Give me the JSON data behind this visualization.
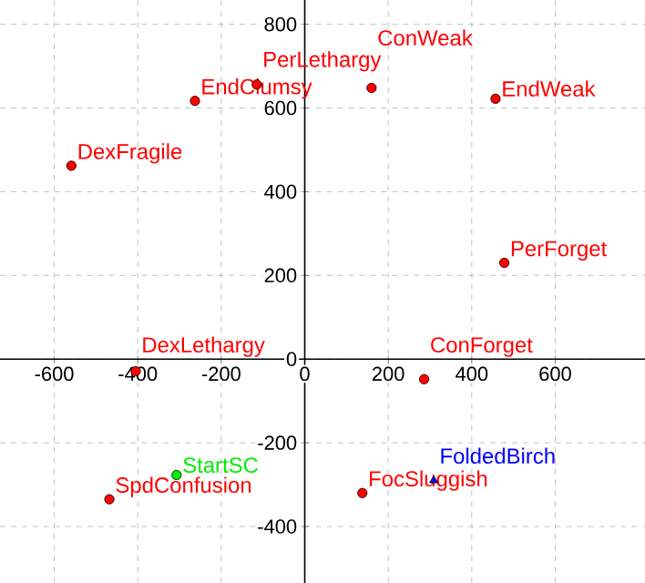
{
  "chart_data": {
    "type": "scatter",
    "xlim": [
      -730,
      815
    ],
    "ylim": [
      -535,
      858
    ],
    "xticks": [
      -600,
      -400,
      -200,
      0,
      200,
      400,
      600
    ],
    "yticks": [
      -400,
      -200,
      0,
      200,
      400,
      600,
      800
    ],
    "grid": true,
    "series": [
      {
        "name": "DexFragile",
        "color": "#ff0000",
        "marker": "circle",
        "x": [
          -559
        ],
        "values": [
          462
        ]
      },
      {
        "name": "EndClumsy",
        "color": "#ff0000",
        "marker": "circle",
        "x": [
          -263
        ],
        "values": [
          617
        ]
      },
      {
        "name": "PerLethargy",
        "color": "#ff0000",
        "marker": "circle",
        "x": [
          -115
        ],
        "values": [
          656
        ]
      },
      {
        "name": "ConWeak",
        "color": "#ff0000",
        "marker": "circle",
        "x": [
          160
        ],
        "values": [
          648
        ]
      },
      {
        "name": "EndWeak",
        "color": "#ff0000",
        "marker": "circle",
        "x": [
          457
        ],
        "values": [
          622
        ]
      },
      {
        "name": "PerForget",
        "color": "#ff0000",
        "marker": "circle",
        "x": [
          478
        ],
        "values": [
          230
        ]
      },
      {
        "name": "DexLethargy",
        "color": "#ff0000",
        "marker": "circle",
        "x": [
          -405
        ],
        "values": [
          -29
        ]
      },
      {
        "name": "ConForget",
        "color": "#ff0000",
        "marker": "circle",
        "x": [
          286
        ],
        "values": [
          -48
        ]
      },
      {
        "name": "StartSC",
        "color": "#00ee00",
        "marker": "circle",
        "x": [
          -307
        ],
        "values": [
          -277
        ]
      },
      {
        "name": "SpdConfusion",
        "color": "#ff0000",
        "marker": "circle",
        "x": [
          -468
        ],
        "values": [
          -335
        ]
      },
      {
        "name": "FocSluggish",
        "color": "#ff0000",
        "marker": "circle",
        "x": [
          138
        ],
        "values": [
          -320
        ]
      },
      {
        "name": "FoldedBirch",
        "color": "#0000ff",
        "marker": "triangle",
        "x": [
          309
        ],
        "values": [
          -290
        ]
      }
    ]
  }
}
